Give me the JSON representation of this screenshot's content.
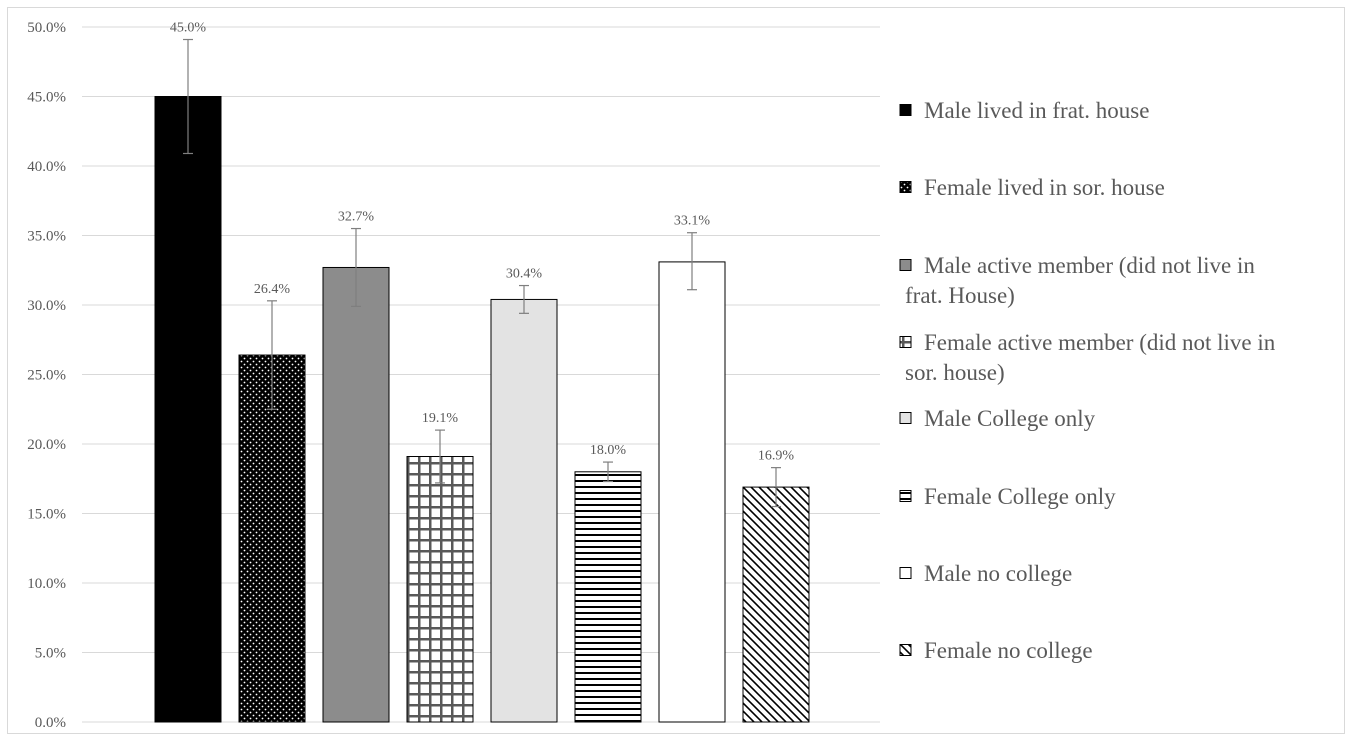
{
  "chart_data": {
    "type": "bar",
    "title": "",
    "xlabel": "",
    "ylabel": "",
    "ylim": [
      0,
      50
    ],
    "yticks": [
      0,
      5,
      10,
      15,
      20,
      25,
      30,
      35,
      40,
      45,
      50
    ],
    "ytick_labels": [
      "0.0%",
      "5.0%",
      "10.0%",
      "15.0%",
      "20.0%",
      "25.0%",
      "30.0%",
      "35.0%",
      "40.0%",
      "45.0%",
      "50.0%"
    ],
    "grid": true,
    "legend_position": "right",
    "bars": [
      {
        "name": "Male lived in frat. house",
        "value": 45.0,
        "label": "45.0%",
        "err_low": 40.9,
        "err_high": 49.1,
        "pattern": "solid-black"
      },
      {
        "name": "Female lived in sor. house",
        "value": 26.4,
        "label": "26.4%",
        "err_low": 22.5,
        "err_high": 30.3,
        "pattern": "dots"
      },
      {
        "name": "Male active member (did not live in frat. House)",
        "value": 32.7,
        "label": "32.7%",
        "err_low": 29.9,
        "err_high": 35.5,
        "pattern": "solid-gray"
      },
      {
        "name": "Female active member (did not live in sor. house)",
        "value": 19.1,
        "label": "19.1%",
        "err_low": 17.2,
        "err_high": 21.0,
        "pattern": "grid"
      },
      {
        "name": "Male College only",
        "value": 30.4,
        "label": "30.4%",
        "err_low": 29.4,
        "err_high": 31.4,
        "pattern": "solid-lightgray"
      },
      {
        "name": "Female College only",
        "value": 18.0,
        "label": "18.0%",
        "err_low": 17.3,
        "err_high": 18.7,
        "pattern": "hlines"
      },
      {
        "name": "Male no college",
        "value": 33.1,
        "label": "33.1%",
        "err_low": 31.1,
        "err_high": 35.2,
        "pattern": "white"
      },
      {
        "name": "Female no college",
        "value": 16.9,
        "label": "16.9%",
        "err_low": 15.5,
        "err_high": 18.3,
        "pattern": "diagonal"
      }
    ],
    "legend": [
      {
        "lines": [
          "Male lived in frat. house"
        ],
        "pattern": "solid-black"
      },
      {
        "lines": [
          "Female lived in sor. house"
        ],
        "pattern": "dots"
      },
      {
        "lines": [
          "Male active member (did not live in",
          "frat. House)"
        ],
        "pattern": "solid-gray"
      },
      {
        "lines": [
          "Female active member (did not live in",
          "sor. house)"
        ],
        "pattern": "grid"
      },
      {
        "lines": [
          "Male College only"
        ],
        "pattern": "solid-lightgray"
      },
      {
        "lines": [
          "Female College only"
        ],
        "pattern": "hlines"
      },
      {
        "lines": [
          "Male no college"
        ],
        "pattern": "white"
      },
      {
        "lines": [
          "Female no college"
        ],
        "pattern": "diagonal"
      }
    ],
    "colors": {
      "gridline": "#d9d9d9",
      "axis_text": "#595959",
      "error_bar": "#7f7f7f",
      "solid_black": "#000000",
      "solid_gray": "#8c8c8c",
      "solid_lightgray": "#e3e3e3",
      "outline": "#000000"
    }
  }
}
